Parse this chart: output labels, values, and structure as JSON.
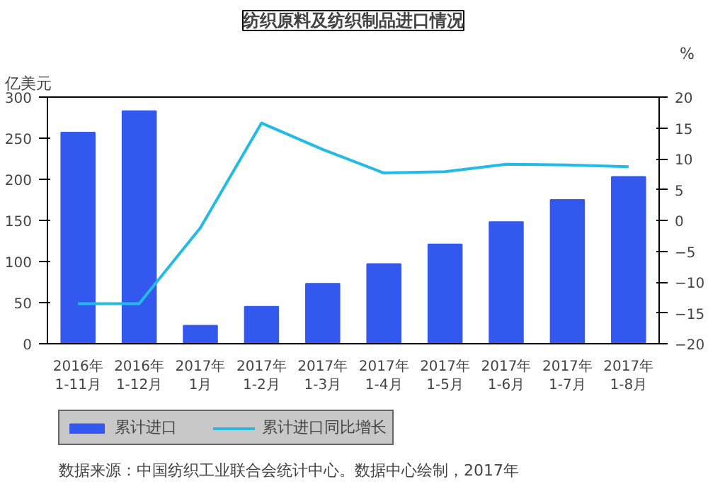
{
  "chart_data": {
    "type": "bar",
    "title": "纺织原料及纺织制品进口情况",
    "ylabel": "亿美元",
    "y2label": "%",
    "categories": [
      "2016年\n1-11月",
      "2016年\n1-12月",
      "2017年\n1月",
      "2017年\n1-2月",
      "2017年\n1-3月",
      "2017年\n1-4月",
      "2017年\n1-5月",
      "2017年\n1-6月",
      "2017年\n1-7月",
      "2017年\n1-8月"
    ],
    "series": [
      {
        "name": "累计进口",
        "color": "#3358ee",
        "values": [
          257,
          283,
          22,
          45,
          73,
          97,
          121,
          148,
          175,
          203
        ]
      },
      {
        "name": "累计进口同比增长",
        "type": "line",
        "axis": "y2",
        "color": "#22bbe6",
        "values": [
          -13.5,
          -13.5,
          -1.2,
          15.8,
          11.5,
          7.7,
          7.9,
          9.1,
          9.0,
          8.7
        ]
      }
    ],
    "ylim": [
      0,
      300
    ],
    "yticks": [
      0,
      50,
      100,
      150,
      200,
      250,
      300
    ],
    "y2lim": [
      -20,
      20
    ],
    "y2ticks": [
      -20,
      -15,
      -10,
      -5,
      0,
      5,
      10,
      15,
      20
    ],
    "legend": "bottom",
    "annotations": [
      "数据来源：中国纺织工业联合会统计中心。数据中心绘制，2017年"
    ]
  }
}
